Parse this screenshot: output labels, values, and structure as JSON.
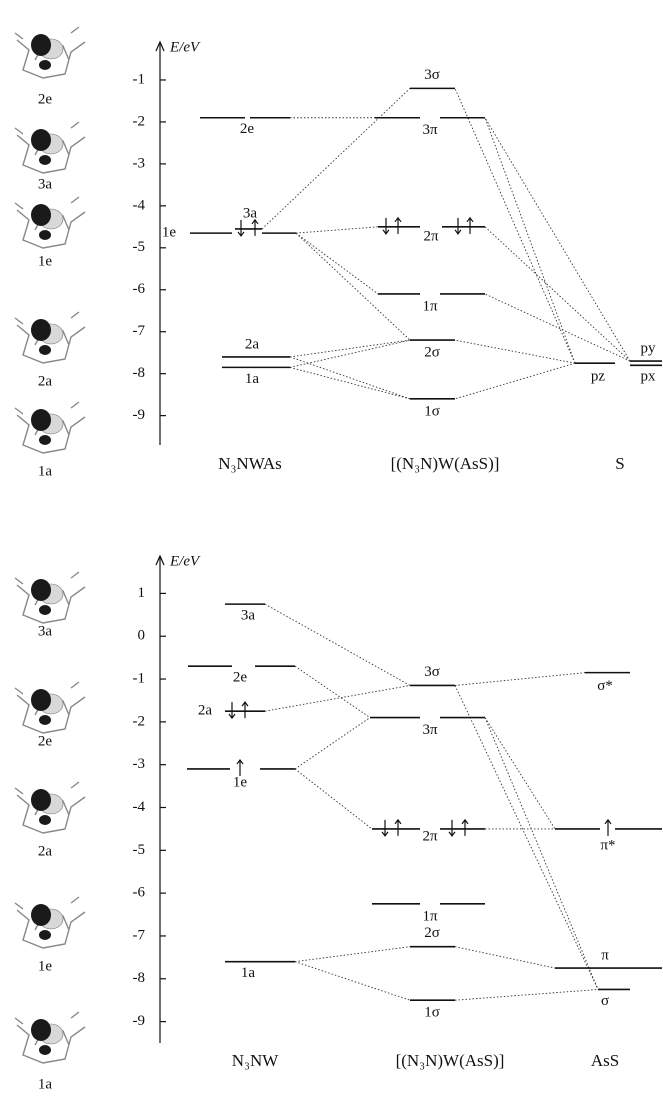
{
  "panels": [
    {
      "axis_label": "E/eV",
      "ylim": [
        -9.7,
        -0.5
      ],
      "yticks": [
        -1,
        -2,
        -3,
        -4,
        -5,
        -6,
        -7,
        -8,
        -9
      ],
      "orbital_images": [
        "2e",
        "3a",
        "1e",
        "2a",
        "1a"
      ],
      "columns": [
        {
          "label": "N₃NWAs",
          "levels": [
            {
              "label": "2e",
              "energy": -1.9
            },
            {
              "label": "3a",
              "energy": -4.55
            },
            {
              "label": "1e",
              "energy": -4.65
            },
            {
              "label": "2a",
              "energy": -7.6
            },
            {
              "label": "1a",
              "energy": -7.85
            }
          ]
        },
        {
          "label": "[(N₃N)W(AsS)]",
          "levels": [
            {
              "label": "3σ",
              "energy": -1.2
            },
            {
              "label": "3π",
              "energy": -1.9
            },
            {
              "label": "2π",
              "energy": -4.5
            },
            {
              "label": "1π",
              "energy": -6.1
            },
            {
              "label": "2σ",
              "energy": -7.2
            },
            {
              "label": "1σ",
              "energy": -8.6
            }
          ]
        },
        {
          "label": "S",
          "levels": [
            {
              "label": "pz",
              "energy": -7.75
            },
            {
              "label": "py",
              "energy": -7.7
            },
            {
              "label": "px",
              "energy": -7.8
            }
          ]
        }
      ]
    },
    {
      "axis_label": "E/eV",
      "ylim": [
        -9.5,
        1.5
      ],
      "yticks": [
        1,
        0,
        -1,
        -2,
        -3,
        -4,
        -5,
        -6,
        -7,
        -8,
        -9
      ],
      "orbital_images": [
        "3a",
        "2e",
        "2a",
        "1e",
        "1a"
      ],
      "columns": [
        {
          "label": "N₃NW",
          "levels": [
            {
              "label": "3a",
              "energy": 0.75
            },
            {
              "label": "2e",
              "energy": -0.7
            },
            {
              "label": "2a",
              "energy": -1.75
            },
            {
              "label": "1e",
              "energy": -3.1
            },
            {
              "label": "1a",
              "energy": -7.6
            }
          ]
        },
        {
          "label": "[(N₃N)W(AsS)]",
          "levels": [
            {
              "label": "3σ",
              "energy": -1.15
            },
            {
              "label": "3π",
              "energy": -1.9
            },
            {
              "label": "2π",
              "energy": -4.5
            },
            {
              "label": "1π",
              "energy": -6.25
            },
            {
              "label": "2σ",
              "energy": -7.25
            },
            {
              "label": "1σ",
              "energy": -8.5
            }
          ]
        },
        {
          "label": "AsS",
          "levels": [
            {
              "label": "σ*",
              "energy": -0.85
            },
            {
              "label": "π*",
              "energy": -4.5
            },
            {
              "label": "π",
              "energy": -7.75
            },
            {
              "label": "σ",
              "energy": -8.25
            }
          ]
        }
      ]
    }
  ]
}
